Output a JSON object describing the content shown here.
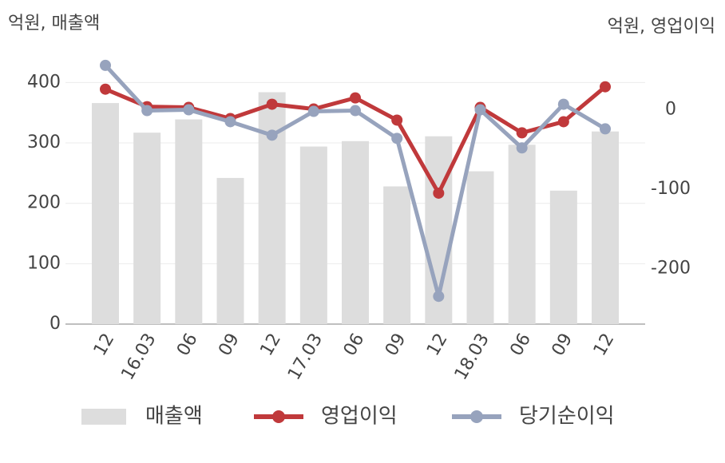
{
  "chart_data": {
    "type": "bar-line",
    "left_unit": "억원, 매출액",
    "right_unit": "억원, 영업이익",
    "categories": [
      "12",
      "16.03",
      "06",
      "09",
      "12",
      "17.03",
      "06",
      "09",
      "12",
      "18.03",
      "06",
      "09",
      "12"
    ],
    "ylim": [
      0,
      460
    ],
    "yticks": [
      0,
      100,
      200,
      300,
      400
    ],
    "y2lim": [
      -270,
      80
    ],
    "y2ticks": [
      0,
      -100,
      -200
    ],
    "grid": true,
    "series": [
      {
        "name": "매출액",
        "type": "bar",
        "color": "#dddddd",
        "values": [
          366,
          317,
          339,
          242,
          384,
          294,
          303,
          228,
          311,
          253,
          297,
          221,
          319
        ]
      },
      {
        "name": "영업이익",
        "type": "line",
        "axis": "y2",
        "color": "#c0393b",
        "values": [
          26,
          4,
          3,
          -11,
          7,
          1,
          15,
          -13,
          -105,
          3,
          -29,
          -15,
          29
        ]
      },
      {
        "name": "당기순이익",
        "type": "line",
        "axis": "y2",
        "color": "#97a3bd",
        "values": [
          56,
          -1,
          0,
          -15,
          -32,
          -2,
          -1,
          -36,
          -235,
          0,
          -48,
          7,
          -24
        ]
      }
    ]
  }
}
